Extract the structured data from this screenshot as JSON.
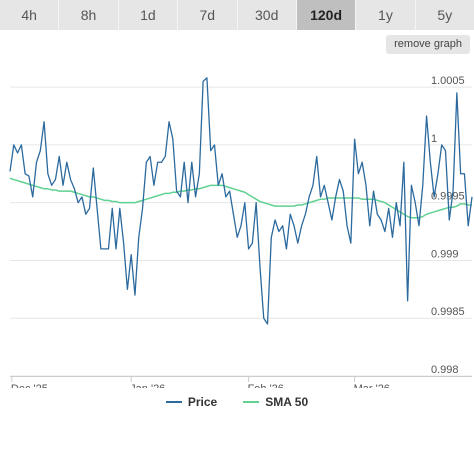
{
  "range_tabs": [
    {
      "label": "4h",
      "active": false
    },
    {
      "label": "8h",
      "active": false
    },
    {
      "label": "1d",
      "active": false
    },
    {
      "label": "7d",
      "active": false
    },
    {
      "label": "30d",
      "active": false
    },
    {
      "label": "120d",
      "active": true
    },
    {
      "label": "1y",
      "active": false
    },
    {
      "label": "5y",
      "active": false
    }
  ],
  "remove_graph_label": "remove graph",
  "colors": {
    "price": "#2b6a9e",
    "sma": "#5fd190",
    "grid": "#e6e6e6",
    "axis": "#cccccc"
  },
  "chart_data": {
    "type": "line",
    "x_tick_labels": [
      "Dec '25",
      "Jan '26",
      "Feb '26",
      "Mar '26"
    ],
    "x_tick_positions": [
      0.5,
      32,
      63,
      91
    ],
    "ylim": [
      0.998,
      1.0007
    ],
    "y_ticks": [
      {
        "value": 0.998,
        "label": "0.998"
      },
      {
        "value": 0.9985,
        "label": "0.9985"
      },
      {
        "value": 0.999,
        "label": "0.999"
      },
      {
        "value": 0.9995,
        "label": "0.9995"
      },
      {
        "value": 1.0,
        "label": "1"
      },
      {
        "value": 1.0005,
        "label": "1.0005"
      }
    ],
    "grid": true,
    "legend_position": "bottom",
    "series": [
      {
        "name": "Price",
        "x_start": 0,
        "x_step": 1,
        "values": [
          0.99977,
          1.0,
          0.99993,
          1.0,
          0.99975,
          0.99973,
          0.99955,
          0.99985,
          0.99995,
          1.0002,
          0.99975,
          0.99965,
          0.9997,
          0.9999,
          0.99965,
          0.99985,
          0.9997,
          0.99962,
          0.9995,
          0.99955,
          0.9994,
          0.99945,
          0.9998,
          0.99945,
          0.9991,
          0.9991,
          0.9991,
          0.99945,
          0.9991,
          0.99945,
          0.99915,
          0.99875,
          0.99905,
          0.9987,
          0.9992,
          0.99945,
          0.99985,
          0.9999,
          0.99965,
          0.99985,
          0.99985,
          0.9999,
          1.0002,
          1.00005,
          0.9996,
          0.99955,
          0.99985,
          0.9995,
          0.99985,
          0.99955,
          0.99975,
          1.00055,
          1.00058,
          0.99995,
          1.0,
          0.99965,
          0.99975,
          0.99955,
          0.9996,
          0.9994,
          0.9992,
          0.9993,
          0.9995,
          0.9991,
          0.99915,
          0.9995,
          0.99895,
          0.9985,
          0.99845,
          0.9992,
          0.99935,
          0.99925,
          0.9993,
          0.9991,
          0.9994,
          0.9993,
          0.99915,
          0.9993,
          0.9994,
          0.99955,
          0.99965,
          0.9999,
          0.99955,
          0.99965,
          0.9995,
          0.99935,
          0.99955,
          0.9997,
          0.9996,
          0.9993,
          0.99915,
          1.00005,
          0.99975,
          0.99985,
          0.99965,
          0.9993,
          0.9996,
          0.9994,
          0.99935,
          0.99925,
          0.99945,
          0.9992,
          0.9995,
          0.9993,
          0.99985,
          0.99865,
          0.99965,
          0.9995,
          0.9993,
          0.99965,
          1.00025,
          0.99985,
          0.99955,
          0.99975,
          1.0,
          0.99995,
          0.99935,
          0.9996,
          1.00045,
          0.99975,
          0.99975,
          0.9993,
          0.99955
        ]
      },
      {
        "name": "SMA 50",
        "x_start": 0,
        "x_step": 1,
        "values": [
          0.99971,
          0.9997,
          0.99969,
          0.99968,
          0.99967,
          0.99966,
          0.99965,
          0.99964,
          0.99963,
          0.99962,
          0.99962,
          0.99961,
          0.99961,
          0.9996,
          0.9996,
          0.9996,
          0.9996,
          0.99959,
          0.99958,
          0.99957,
          0.99956,
          0.99955,
          0.99955,
          0.99954,
          0.99953,
          0.99952,
          0.99952,
          0.99951,
          0.99951,
          0.9995,
          0.9995,
          0.9995,
          0.9995,
          0.9995,
          0.99951,
          0.99952,
          0.99953,
          0.99954,
          0.99955,
          0.99956,
          0.99957,
          0.99958,
          0.99958,
          0.99959,
          0.99959,
          0.9996,
          0.9996,
          0.99961,
          0.99961,
          0.99962,
          0.99962,
          0.99963,
          0.99964,
          0.99965,
          0.99965,
          0.99965,
          0.99965,
          0.99964,
          0.99963,
          0.99962,
          0.99961,
          0.9996,
          0.99959,
          0.99957,
          0.99955,
          0.99953,
          0.99951,
          0.9995,
          0.99949,
          0.99948,
          0.99947,
          0.99947,
          0.99947,
          0.99947,
          0.99947,
          0.99947,
          0.99948,
          0.99948,
          0.99949,
          0.9995,
          0.99951,
          0.99952,
          0.99953,
          0.99953,
          0.99954,
          0.99954,
          0.99954,
          0.99954,
          0.99954,
          0.99954,
          0.99954,
          0.99954,
          0.99954,
          0.99953,
          0.99953,
          0.99953,
          0.99953,
          0.99952,
          0.99951,
          0.9995,
          0.99948,
          0.99946,
          0.99944,
          0.99942,
          0.9994,
          0.99938,
          0.99937,
          0.99937,
          0.99937,
          0.99938,
          0.9994,
          0.99941,
          0.99942,
          0.99943,
          0.99944,
          0.99945,
          0.99946,
          0.99946,
          0.99947,
          0.99949,
          0.99949,
          0.99948,
          0.99948
        ]
      }
    ]
  }
}
